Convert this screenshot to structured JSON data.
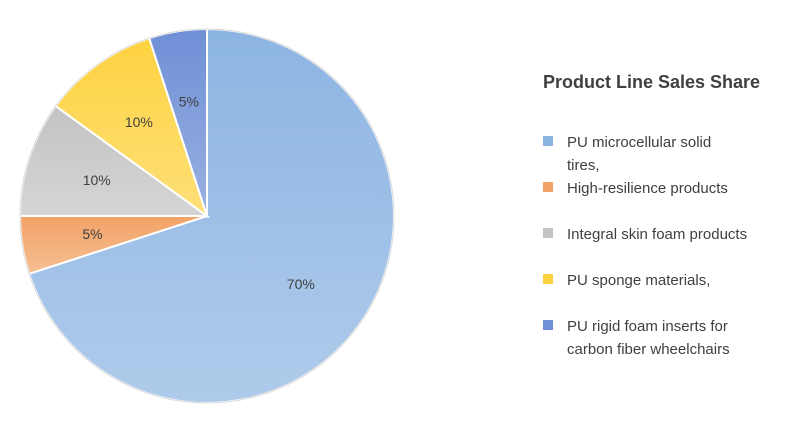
{
  "chart_data": {
    "type": "pie",
    "title": "Product Line Sales Share",
    "legend_position": "right",
    "slices": [
      {
        "name": "PU microcellular solid tires,",
        "value": 70,
        "label": "70%",
        "color": "#8cb4e3"
      },
      {
        "name": "High-resilience products",
        "value": 5,
        "label": "5%",
        "color": "#f2a266"
      },
      {
        "name": "Integral skin foam products",
        "value": 10,
        "label": "10%",
        "color": "#c3c3c3"
      },
      {
        "name": "PU sponge materials,",
        "value": 10,
        "label": "10%",
        "color": "#fdd240"
      },
      {
        "name": "PU rigid foam inserts for carbon fiber wheelchairs",
        "value": 5,
        "label": "5%",
        "color": "#6f8fd6"
      }
    ]
  }
}
